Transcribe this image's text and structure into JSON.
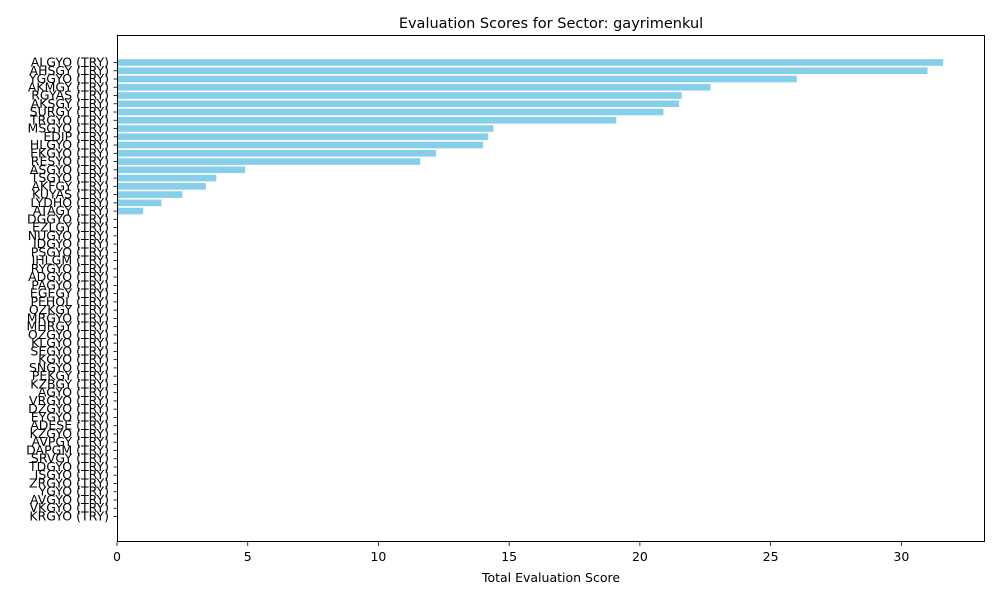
{
  "chart_data": {
    "type": "bar",
    "orientation": "horizontal",
    "title": "Evaluation Scores for Sector: gayrimenkul",
    "xlabel": "Total Evaluation Score",
    "ylabel": "",
    "xlim": [
      0,
      33.2
    ],
    "xticks": [
      0,
      5,
      10,
      15,
      20,
      25,
      30
    ],
    "grid": false,
    "bar_color": "#87ceeb",
    "categories": [
      "ALGYO (TRY)",
      "AHSGY (TRY)",
      "YGGYO (TRY)",
      "AKMGY (TRY)",
      "RGYAS (TRY)",
      "AKSGY (TRY)",
      "SURGY (TRY)",
      "TRGYO (TRY)",
      "MSGYO (TRY)",
      "EDIP (TRY)",
      "HLGYO (TRY)",
      "EKGYO (TRY)",
      "RESYO (TRY)",
      "ASGYO (TRY)",
      "TSGYO (TRY)",
      "AKFGY (TRY)",
      "KUYAS (TRY)",
      "LYDHO (TRY)",
      "ATAGY (TRY)",
      "DGGYO (TRY)",
      "EZLGY (TRY)",
      "NUGYO (TRY)",
      "IDGYO (TRY)",
      "PSGYO (TRY)",
      "IHLGM (TRY)",
      "RYGYO (TRY)",
      "ADGYO (TRY)",
      "PAGYO (TRY)",
      "EGEGY (TRY)",
      "PEHOL (TRY)",
      "OZKGY (TRY)",
      "MRGYO (TRY)",
      "MHRGY (TRY)",
      "OZGYO (TRY)",
      "KLGYO (TRY)",
      "SEGYO (TRY)",
      "KGYO (TRY)",
      "SNGYO (TRY)",
      "PEKGY (TRY)",
      "KZBGY (TRY)",
      "AGYO (TRY)",
      "VRGYO (TRY)",
      "DZGYO (TRY)",
      "EYGYO (TRY)",
      "ADESE (TRY)",
      "KZGYO (TRY)",
      "AVPGY (TRY)",
      "DAPGM (TRY)",
      "SRVGY (TRY)",
      "TDGYO (TRY)",
      "ISGYO (TRY)",
      "ZRGYO (TRY)",
      "YGYO (TRY)",
      "AVGYO (TRY)",
      "VKGYO (TRY)",
      "KRGYO (TRY)"
    ],
    "values": [
      31.6,
      31.0,
      26.0,
      22.7,
      21.6,
      21.5,
      20.9,
      19.1,
      14.4,
      14.2,
      14.0,
      12.2,
      11.6,
      4.9,
      3.8,
      3.4,
      2.5,
      1.7,
      1.0,
      0,
      0,
      0,
      0,
      0,
      0,
      0,
      0,
      0,
      0,
      0,
      0,
      0,
      0,
      0,
      0,
      0,
      0,
      0,
      0,
      0,
      0,
      0,
      0,
      0,
      0,
      0,
      0,
      0,
      0,
      0,
      0,
      0,
      0,
      0,
      0,
      0
    ]
  }
}
